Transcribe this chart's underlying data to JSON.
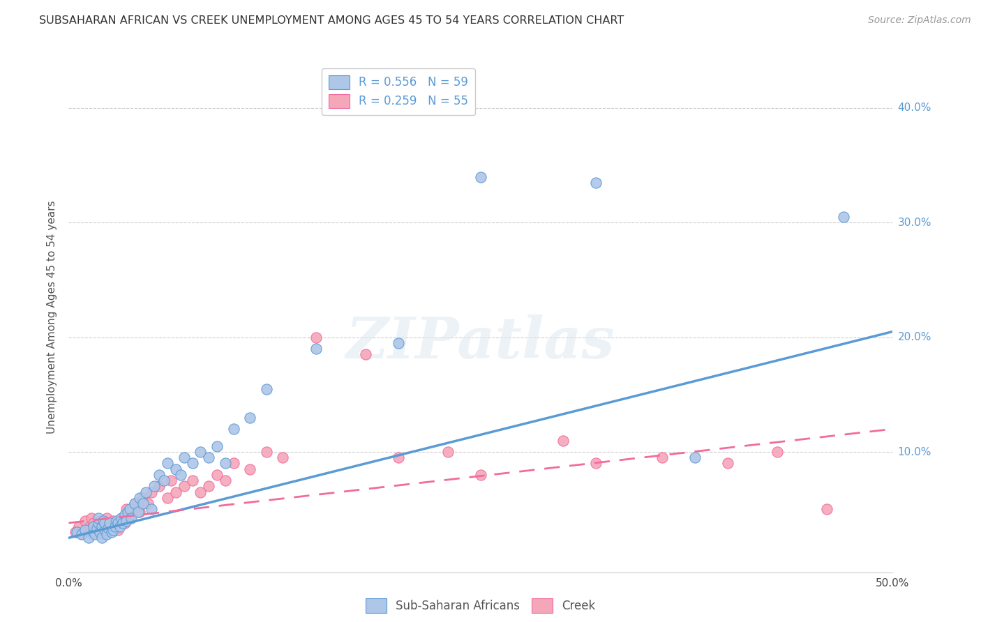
{
  "title": "SUBSAHARAN AFRICAN VS CREEK UNEMPLOYMENT AMONG AGES 45 TO 54 YEARS CORRELATION CHART",
  "source": "Source: ZipAtlas.com",
  "ylabel": "Unemployment Among Ages 45 to 54 years",
  "xlim": [
    0.0,
    0.5
  ],
  "ylim": [
    -0.005,
    0.44
  ],
  "xticks": [
    0.0,
    0.5
  ],
  "xtick_labels": [
    "0.0%",
    "50.0%"
  ],
  "yticks": [
    0.1,
    0.2,
    0.3,
    0.4
  ],
  "ytick_labels": [
    "10.0%",
    "20.0%",
    "30.0%",
    "40.0%"
  ],
  "legend_entries": [
    {
      "label": "R = 0.556   N = 59",
      "color": "#aec6e8"
    },
    {
      "label": "R = 0.259   N = 55",
      "color": "#f4a7b9"
    }
  ],
  "legend_labels_bottom": [
    "Sub-Saharan Africans",
    "Creek"
  ],
  "blue_color": "#5b9bd5",
  "pink_color": "#f26b9c",
  "blue_scatter_color": "#aec6e8",
  "pink_scatter_color": "#f4a7b9",
  "blue_scatter_x": [
    0.005,
    0.008,
    0.01,
    0.012,
    0.015,
    0.015,
    0.016,
    0.017,
    0.018,
    0.018,
    0.019,
    0.02,
    0.02,
    0.021,
    0.022,
    0.022,
    0.023,
    0.024,
    0.025,
    0.026,
    0.027,
    0.028,
    0.029,
    0.03,
    0.031,
    0.032,
    0.033,
    0.034,
    0.035,
    0.036,
    0.037,
    0.038,
    0.04,
    0.042,
    0.043,
    0.045,
    0.047,
    0.05,
    0.052,
    0.055,
    0.058,
    0.06,
    0.065,
    0.068,
    0.07,
    0.075,
    0.08,
    0.085,
    0.09,
    0.095,
    0.1,
    0.11,
    0.12,
    0.15,
    0.2,
    0.25,
    0.32,
    0.38,
    0.47
  ],
  "blue_scatter_y": [
    0.03,
    0.028,
    0.032,
    0.025,
    0.03,
    0.035,
    0.028,
    0.033,
    0.038,
    0.042,
    0.03,
    0.025,
    0.035,
    0.04,
    0.032,
    0.038,
    0.028,
    0.034,
    0.038,
    0.03,
    0.032,
    0.035,
    0.04,
    0.038,
    0.035,
    0.042,
    0.038,
    0.045,
    0.04,
    0.048,
    0.05,
    0.042,
    0.055,
    0.048,
    0.06,
    0.055,
    0.065,
    0.05,
    0.07,
    0.08,
    0.075,
    0.09,
    0.085,
    0.08,
    0.095,
    0.09,
    0.1,
    0.095,
    0.105,
    0.09,
    0.12,
    0.13,
    0.155,
    0.19,
    0.195,
    0.34,
    0.335,
    0.095,
    0.305
  ],
  "pink_scatter_x": [
    0.004,
    0.006,
    0.008,
    0.01,
    0.012,
    0.013,
    0.014,
    0.015,
    0.016,
    0.017,
    0.018,
    0.019,
    0.02,
    0.021,
    0.022,
    0.023,
    0.025,
    0.027,
    0.028,
    0.03,
    0.032,
    0.034,
    0.035,
    0.038,
    0.04,
    0.042,
    0.043,
    0.045,
    0.048,
    0.05,
    0.055,
    0.06,
    0.062,
    0.065,
    0.07,
    0.075,
    0.08,
    0.085,
    0.09,
    0.095,
    0.1,
    0.11,
    0.12,
    0.13,
    0.15,
    0.18,
    0.2,
    0.23,
    0.25,
    0.3,
    0.32,
    0.36,
    0.4,
    0.43,
    0.46
  ],
  "pink_scatter_y": [
    0.03,
    0.035,
    0.028,
    0.04,
    0.03,
    0.035,
    0.042,
    0.038,
    0.03,
    0.035,
    0.032,
    0.04,
    0.035,
    0.028,
    0.038,
    0.042,
    0.035,
    0.04,
    0.038,
    0.032,
    0.042,
    0.038,
    0.05,
    0.045,
    0.055,
    0.05,
    0.048,
    0.06,
    0.055,
    0.065,
    0.07,
    0.06,
    0.075,
    0.065,
    0.07,
    0.075,
    0.065,
    0.07,
    0.08,
    0.075,
    0.09,
    0.085,
    0.1,
    0.095,
    0.2,
    0.185,
    0.095,
    0.1,
    0.08,
    0.11,
    0.09,
    0.095,
    0.09,
    0.1,
    0.05
  ],
  "blue_trendline_x": [
    0.0,
    0.5
  ],
  "blue_trendline_y": [
    0.025,
    0.205
  ],
  "pink_trendline_x": [
    0.0,
    0.5
  ],
  "pink_trendline_y": [
    0.038,
    0.12
  ],
  "watermark_text": "ZIPatlas",
  "background_color": "#ffffff",
  "grid_color": "#cccccc",
  "grid_linestyle": "--",
  "ytick_color": "#5b9bd5",
  "xtick_color": "#444444"
}
